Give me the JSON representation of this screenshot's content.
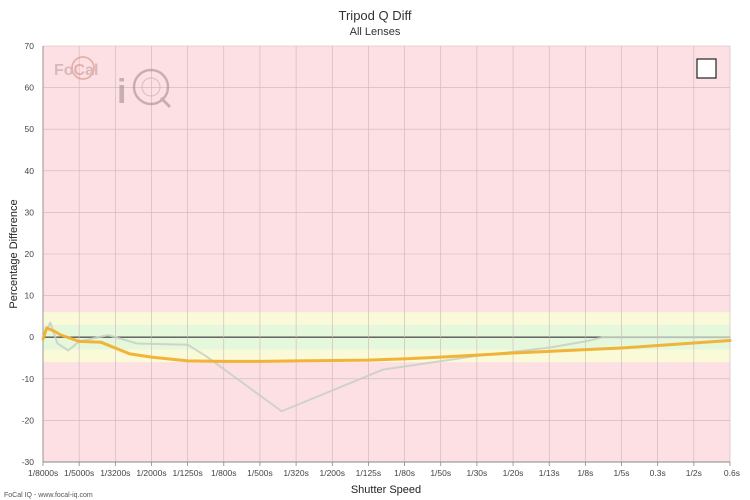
{
  "chart_data": {
    "type": "line",
    "title": "Tripod Q Diff",
    "subtitle": "All Lenses",
    "xlabel": "Shutter Speed",
    "ylabel": "Percentage Difference",
    "ylim": [
      -30,
      70
    ],
    "y_ticks": [
      70,
      60,
      50,
      40,
      30,
      20,
      10,
      0,
      -10,
      -20,
      -30
    ],
    "categories": [
      "1/8000s",
      "1/5000s",
      "1/3200s",
      "1/2000s",
      "1/1250s",
      "1/800s",
      "1/500s",
      "1/320s",
      "1/200s",
      "1/125s",
      "1/80s",
      "1/50s",
      "1/30s",
      "1/20s",
      "1/13s",
      "1/8s",
      "1/5s",
      "0.3s",
      "1/2s",
      "0.6s"
    ],
    "bands": {
      "green": [
        -3,
        3
      ],
      "yellow": [
        -6,
        6
      ],
      "background": "#fde0e3",
      "green_color": "#e5f8dc",
      "yellow_color": "#fafad8"
    },
    "grid": true,
    "legend": "top-right",
    "series": [
      {
        "color": "#f0b030",
        "points": [
          [
            0,
            -0.5
          ],
          [
            0.1,
            2.2
          ],
          [
            0.3,
            1.5
          ],
          [
            0.5,
            0.5
          ],
          [
            1,
            -1
          ],
          [
            1.6,
            -1.2
          ],
          [
            2.4,
            -4
          ],
          [
            3,
            -4.8
          ],
          [
            4,
            -5.7
          ],
          [
            5,
            -5.8
          ],
          [
            6,
            -5.8
          ],
          [
            7,
            -5.7
          ],
          [
            8,
            -5.6
          ],
          [
            9,
            -5.5
          ],
          [
            10,
            -5.2
          ],
          [
            11,
            -4.8
          ],
          [
            12,
            -4.3
          ],
          [
            13,
            -3.8
          ],
          [
            14,
            -3.4
          ],
          [
            15,
            -3
          ],
          [
            16,
            -2.6
          ],
          [
            17,
            -2
          ],
          [
            18,
            -1.4
          ],
          [
            19,
            -0.8
          ]
        ]
      },
      {
        "color": "#c8cfc4",
        "points": [
          [
            0,
            0
          ],
          [
            0.2,
            3.5
          ],
          [
            0.4,
            -1.5
          ],
          [
            0.7,
            -3.2
          ],
          [
            1,
            -1
          ],
          [
            1.8,
            0.5
          ],
          [
            2.6,
            -1.5
          ],
          [
            4,
            -1.8
          ],
          [
            4.5,
            -4.5
          ],
          [
            6.6,
            -17.8
          ],
          [
            9.4,
            -7.8
          ],
          [
            12,
            -4.5
          ],
          [
            14,
            -2.5
          ],
          [
            15,
            -1
          ],
          [
            15.5,
            0
          ],
          [
            19,
            0
          ]
        ]
      }
    ]
  },
  "logo": {
    "part1": "Fo",
    "part2": "C",
    "part3": "al",
    "part4": "i",
    "part5": "Q"
  },
  "footer": "FoCal IQ - www.focal-iq.com",
  "colors": {
    "grid": "#c9b6b8",
    "zero_line": "#555555",
    "axis": "#888888"
  }
}
